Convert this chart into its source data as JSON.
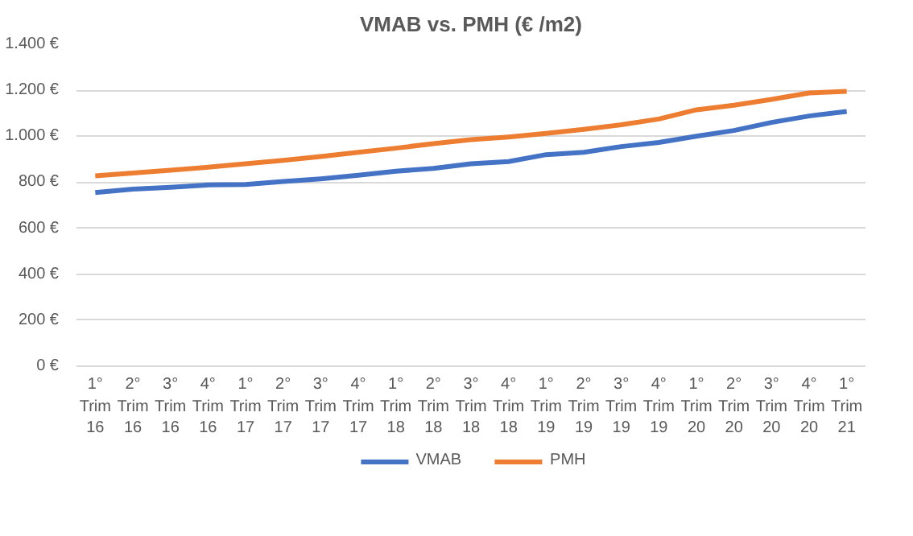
{
  "chart_data": {
    "type": "line",
    "title": "VMAB vs. PMH (€ /m2)",
    "categories": [
      "1° Trim 16",
      "2° Trim 16",
      "3° Trim 16",
      "4° Trim 16",
      "1° Trim 17",
      "2° Trim 17",
      "3° Trim 17",
      "4° Trim 17",
      "1° Trim 18",
      "2° Trim 18",
      "3° Trim 18",
      "4° Trim 18",
      "1° Trim 19",
      "2° Trim 19",
      "3° Trim 19",
      "4° Trim 19",
      "1° Trim 20",
      "2° Trim 20",
      "3° Trim 20",
      "4° Trim 20",
      "1° Trim 21"
    ],
    "series": [
      {
        "name": "VMAB",
        "color": "#4472c4",
        "values": [
          755,
          770,
          778,
          788,
          790,
          803,
          815,
          830,
          848,
          860,
          880,
          890,
          920,
          930,
          955,
          973,
          1000,
          1025,
          1060,
          1088,
          1108
        ]
      },
      {
        "name": "PMH",
        "color": "#ed7d31",
        "values": [
          828,
          840,
          852,
          865,
          880,
          895,
          912,
          930,
          948,
          968,
          985,
          997,
          1012,
          1030,
          1050,
          1075,
          1115,
          1135,
          1160,
          1188,
          1195
        ]
      }
    ],
    "ylim": [
      0,
      1400
    ],
    "yticks": [
      {
        "value": 0,
        "label": "0 €"
      },
      {
        "value": 200,
        "label": "200 €"
      },
      {
        "value": 400,
        "label": "400 €"
      },
      {
        "value": 600,
        "label": "600 €"
      },
      {
        "value": 800,
        "label": "800 €"
      },
      {
        "value": 1000,
        "label": "1.000 €"
      },
      {
        "value": 1200,
        "label": "1.200 €"
      },
      {
        "value": 1400,
        "label": "1.400 €"
      }
    ],
    "grid": "y",
    "legend": "bottom",
    "marker": "none",
    "line_style": "solid"
  }
}
